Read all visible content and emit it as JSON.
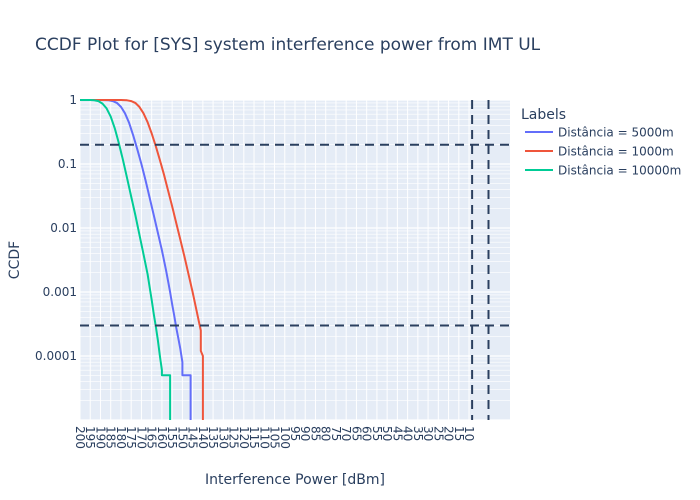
{
  "chart_data": {
    "type": "line",
    "title": "CCDF Plot for [SYS] system interference power from IMT UL",
    "xlabel": "Interference Power [dBm]",
    "ylabel": "CCDF",
    "x_scale": "linear",
    "y_scale": "log",
    "xlim": [
      -200,
      10
    ],
    "ylim": [
      1e-05,
      1
    ],
    "x_ticks": [
      -200,
      -195,
      -190,
      -185,
      -180,
      -175,
      -170,
      -165,
      -160,
      -155,
      -150,
      -145,
      -140,
      -135,
      -130,
      -125,
      -120,
      -115,
      -110,
      -105,
      -100,
      -95,
      -90,
      -85,
      -80,
      -75,
      -70,
      -65,
      -60,
      -55,
      -50,
      -45,
      -40,
      -35,
      -30,
      -25,
      -20,
      -15,
      -10
    ],
    "x_tick_labels": [
      "200",
      "195",
      "190",
      "185",
      "180",
      "175",
      "170",
      "165",
      "160",
      "155",
      "150",
      "145",
      "140",
      "135",
      "130",
      "125",
      "120",
      "115",
      "110",
      "105",
      "100",
      "95",
      "90",
      "85",
      "80",
      "75",
      "70",
      "65",
      "60",
      "55",
      "50",
      "45",
      "40",
      "35",
      "30",
      "25",
      "20",
      "15",
      "10"
    ],
    "y_ticks": [
      1,
      0.1,
      0.01,
      0.001,
      0.0001
    ],
    "y_tick_labels": [
      "1",
      "0.1",
      "0.01",
      "0.001",
      "0.0001"
    ],
    "grid": true,
    "legend_title": "Labels",
    "legend_position": "right",
    "series": [
      {
        "name": "Distância = 5000m",
        "color": "#636efa",
        "x": [
          -200,
          -190,
          -186,
          -184,
          -182,
          -180,
          -178,
          -176,
          -174,
          -172,
          -170,
          -168,
          -166,
          -164,
          -162,
          -160,
          -158,
          -157,
          -156,
          -155,
          -154,
          -153,
          -152,
          -151,
          -150,
          -150,
          -148,
          -146,
          -146
        ],
        "y": [
          1,
          0.999,
          0.99,
          0.96,
          0.9,
          0.78,
          0.62,
          0.44,
          0.28,
          0.17,
          0.1,
          0.056,
          0.03,
          0.016,
          0.0085,
          0.0045,
          0.0022,
          0.0015,
          0.001,
          0.00065,
          0.00043,
          0.00028,
          0.00019,
          0.00013,
          8e-05,
          5e-05,
          5e-05,
          5e-05,
          1e-05
        ]
      },
      {
        "name": "Distância = 1000m",
        "color": "#ef553b",
        "x": [
          -200,
          -180,
          -177,
          -175,
          -173,
          -171,
          -169,
          -167,
          -165,
          -163,
          -161,
          -159,
          -157,
          -155,
          -153,
          -151,
          -149,
          -147,
          -145,
          -143,
          -142,
          -141,
          -141,
          -140,
          -140,
          -140,
          -140
        ],
        "y": [
          1,
          0.999,
          0.99,
          0.96,
          0.9,
          0.78,
          0.62,
          0.45,
          0.3,
          0.19,
          0.115,
          0.068,
          0.039,
          0.022,
          0.012,
          0.0066,
          0.0036,
          0.0019,
          0.001,
          0.0005,
          0.00035,
          0.00025,
          0.00012,
          0.0001,
          0.0001,
          5e-05,
          1e-05
        ]
      },
      {
        "name": "Distância = 10000m",
        "color": "#00cc96",
        "x": [
          -200,
          -195,
          -193,
          -191,
          -189,
          -187,
          -185,
          -183,
          -181,
          -179,
          -177,
          -175,
          -173,
          -171,
          -169,
          -167,
          -166,
          -165,
          -164,
          -163,
          -162,
          -161,
          -160,
          -160,
          -158,
          -156,
          -156
        ],
        "y": [
          1,
          0.999,
          0.99,
          0.96,
          0.88,
          0.74,
          0.55,
          0.36,
          0.21,
          0.115,
          0.06,
          0.031,
          0.016,
          0.0079,
          0.0039,
          0.0019,
          0.0012,
          0.00075,
          0.00046,
          0.00029,
          0.00018,
          0.0001,
          6e-05,
          5e-05,
          5e-05,
          5e-05,
          1e-05
        ]
      }
    ],
    "reference_lines": {
      "ccdf_levels": [
        0.2,
        0.0003
      ],
      "power_levels": [
        -8.5,
        -0.5
      ],
      "color": "#2a3f5f",
      "style": "dashed"
    }
  }
}
